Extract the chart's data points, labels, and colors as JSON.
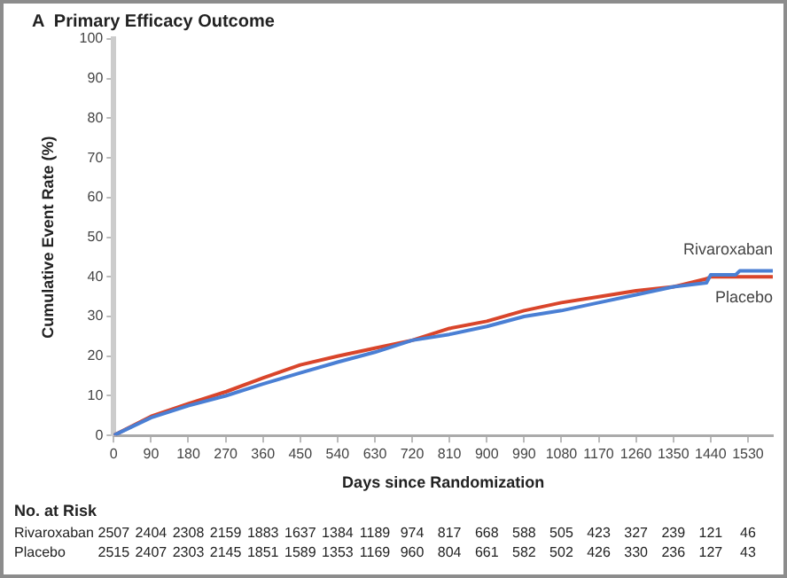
{
  "chart_data": {
    "type": "line",
    "title": "A  Primary Efficacy Outcome",
    "xlabel": "Days since Randomization",
    "ylabel": "Cumulative Event Rate (%)",
    "xlim": [
      0,
      1590
    ],
    "xticks": [
      0,
      90,
      180,
      270,
      360,
      450,
      540,
      630,
      720,
      810,
      900,
      990,
      1080,
      1170,
      1260,
      1350,
      1440,
      1530
    ],
    "ylim": [
      0,
      100
    ],
    "yticks": [
      0,
      10,
      20,
      30,
      40,
      50,
      60,
      70,
      80,
      90,
      100
    ],
    "grid": false,
    "legend": false,
    "marker": "none",
    "line_style": "solid",
    "series": [
      {
        "name": "Rivaroxaban",
        "color": "#4a7fd4",
        "x": [
          0,
          90,
          180,
          270,
          360,
          450,
          540,
          630,
          720,
          810,
          900,
          990,
          1080,
          1170,
          1260,
          1350,
          1430,
          1440,
          1500,
          1510,
          1590
        ],
        "values": [
          0,
          4.5,
          7.5,
          10,
          13,
          15.8,
          18.5,
          21,
          24,
          25.5,
          27.5,
          30,
          31.5,
          33.5,
          35.5,
          37.5,
          38.5,
          40.5,
          40.5,
          41.5,
          41.5
        ]
      },
      {
        "name": "Placebo",
        "color": "#d9452b",
        "x": [
          0,
          90,
          180,
          270,
          360,
          450,
          540,
          630,
          720,
          810,
          900,
          990,
          1080,
          1170,
          1260,
          1350,
          1430,
          1440,
          1590
        ],
        "values": [
          0,
          4.8,
          8,
          11,
          14.5,
          17.8,
          20,
          22,
          24,
          27,
          28.8,
          31.5,
          33.5,
          35,
          36.5,
          37.5,
          39.5,
          40,
          40
        ]
      }
    ],
    "annotations": [
      "No. at Risk",
      "Rivaroxaban 2507 2404 2308 2159 1883 1637 1384 1189 974 817 668 588 505 423 327 239 121 46",
      "Placebo 2515 2407 2303 2145 1851 1589 1353 1169 960 804 661 582 502 426 330 236 127 43"
    ]
  }
}
